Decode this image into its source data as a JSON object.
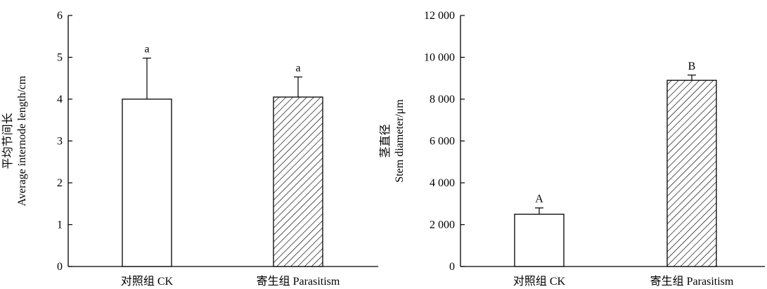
{
  "chart_data": [
    {
      "type": "bar",
      "ylabel_zh": "平均节间长",
      "ylabel_en": "Average internode length/cm",
      "ylim": [
        0,
        6
      ],
      "yticks": [
        0,
        1,
        2,
        3,
        4,
        5,
        6
      ],
      "ytick_labels": [
        "0",
        "1",
        "2",
        "3",
        "4",
        "5",
        "6"
      ],
      "categories": [
        "对照组 CK",
        "寄生组 Parasitism"
      ],
      "values": [
        4.0,
        4.05
      ],
      "errors": [
        0.98,
        0.48
      ],
      "significance": [
        "a",
        "a"
      ],
      "fills": [
        "plain",
        "hatched"
      ]
    },
    {
      "type": "bar",
      "ylabel_zh": "茎直径",
      "ylabel_en": "Stem diameter/μm",
      "ylim": [
        0,
        12000
      ],
      "yticks": [
        0,
        2000,
        4000,
        6000,
        8000,
        10000,
        12000
      ],
      "ytick_labels": [
        "0",
        "2 000",
        "4 000",
        "6 000",
        "8 000",
        "10 000",
        "12 000"
      ],
      "categories": [
        "对照组 CK",
        "寄生组 Parasitism"
      ],
      "values": [
        2500,
        8900
      ],
      "errors": [
        300,
        250
      ],
      "significance": [
        "A",
        "B"
      ],
      "fills": [
        "plain",
        "hatched"
      ]
    }
  ]
}
